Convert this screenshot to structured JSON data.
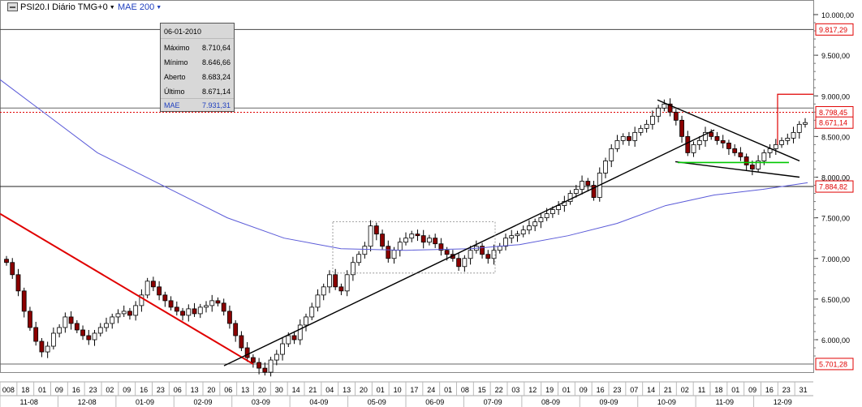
{
  "header": {
    "symbol_label": "PSI20.I Diário TMG+0",
    "ma_label": "MAE 200"
  },
  "info_box": {
    "date": "06-01-2010",
    "rows": [
      {
        "label": "Máximo",
        "value": "8.710,64"
      },
      {
        "label": "Mínimo",
        "value": "8.646,66"
      },
      {
        "label": "Aberto",
        "value": "8.683,24"
      },
      {
        "label": "Último",
        "value": "8.671,14"
      },
      {
        "label": "MAE",
        "value": "7.931,31"
      }
    ]
  },
  "colors": {
    "up_candle": "#ffffff",
    "down_candle": "#8b0000",
    "ma_line": "#5a5ad8",
    "trend_red": "#e00000",
    "green_line": "#00c800",
    "price_tag": "#e00000"
  },
  "chart_data": {
    "type": "candlestick",
    "y_axis": {
      "ticks": [
        "10.000,00",
        "9.500,00",
        "9.000,00",
        "8.500,00",
        "8.000,00",
        "7.500,00",
        "7.000,00",
        "6.500,00",
        "6.000,00"
      ],
      "range": [
        5700,
        10000
      ]
    },
    "price_tags": [
      {
        "value": 9817.29,
        "label": "9.817,29"
      },
      {
        "value": 8798.45,
        "label": "8.798,45"
      },
      {
        "value": 8671.14,
        "label": "8.671,14"
      },
      {
        "value": 7884.82,
        "label": "7.884,82"
      },
      {
        "value": 5701.28,
        "label": "5.701,28"
      }
    ],
    "x_axis": {
      "days": [
        "008",
        "18",
        "01",
        "09",
        "16",
        "23",
        "02",
        "09",
        "16",
        "23",
        "06",
        "13",
        "20",
        "06",
        "13",
        "20",
        "30",
        "14",
        "21",
        "04",
        "13",
        "20",
        "01",
        "10",
        "17",
        "24",
        "01",
        "08",
        "15",
        "22",
        "03",
        "12",
        "19",
        "01",
        "09",
        "16",
        "23",
        "07",
        "14",
        "21",
        "02",
        "11",
        "18",
        "01",
        "09",
        "16",
        "23",
        "31"
      ],
      "months": [
        "11-08",
        "12-08",
        "01-09",
        "02-09",
        "03-09",
        "04-09",
        "05-09",
        "06-09",
        "07-09",
        "08-09",
        "09-09",
        "10-09",
        "11-09",
        "12-09"
      ]
    },
    "moving_average": {
      "name": "MAE 200",
      "points": [
        [
          0,
          9200
        ],
        [
          40,
          8900
        ],
        [
          120,
          8300
        ],
        [
          200,
          7900
        ],
        [
          280,
          7500
        ],
        [
          350,
          7250
        ],
        [
          420,
          7120
        ],
        [
          500,
          7100
        ],
        [
          580,
          7120
        ],
        [
          640,
          7170
        ],
        [
          700,
          7280
        ],
        [
          760,
          7430
        ],
        [
          820,
          7650
        ],
        [
          880,
          7780
        ],
        [
          940,
          7850
        ],
        [
          995,
          7931
        ]
      ]
    },
    "candles_close": [
      6950,
      6800,
      6600,
      6350,
      6150,
      5980,
      5850,
      5920,
      6080,
      6150,
      6280,
      6200,
      6120,
      6050,
      6000,
      6080,
      6150,
      6200,
      6280,
      6320,
      6350,
      6300,
      6420,
      6550,
      6720,
      6650,
      6550,
      6480,
      6400,
      6350,
      6300,
      6380,
      6320,
      6400,
      6420,
      6480,
      6450,
      6350,
      6200,
      6050,
      5900,
      5780,
      5720,
      5650,
      5600,
      5750,
      5820,
      5950,
      6050,
      6000,
      6180,
      6280,
      6400,
      6550,
      6650,
      6800,
      6650,
      6600,
      6800,
      6950,
      7050,
      7150,
      7400,
      7300,
      7150,
      7000,
      7100,
      7200,
      7250,
      7300,
      7280,
      7200,
      7250,
      7180,
      7100,
      7050,
      7000,
      6900,
      7000,
      7100,
      7150,
      7050,
      7000,
      7100,
      7150,
      7250,
      7280,
      7300,
      7350,
      7400,
      7450,
      7500,
      7550,
      7600,
      7650,
      7700,
      7800,
      7850,
      7950,
      7900,
      7750,
      8050,
      8200,
      8350,
      8450,
      8500,
      8450,
      8550,
      8600,
      8650,
      8750,
      8850,
      8900,
      8800,
      8700,
      8500,
      8300,
      8400,
      8450,
      8550,
      8500,
      8450,
      8420,
      8350,
      8300,
      8250,
      8150,
      8100,
      8200,
      8300,
      8350,
      8400,
      8450,
      8480,
      8550,
      8650,
      8671
    ]
  }
}
